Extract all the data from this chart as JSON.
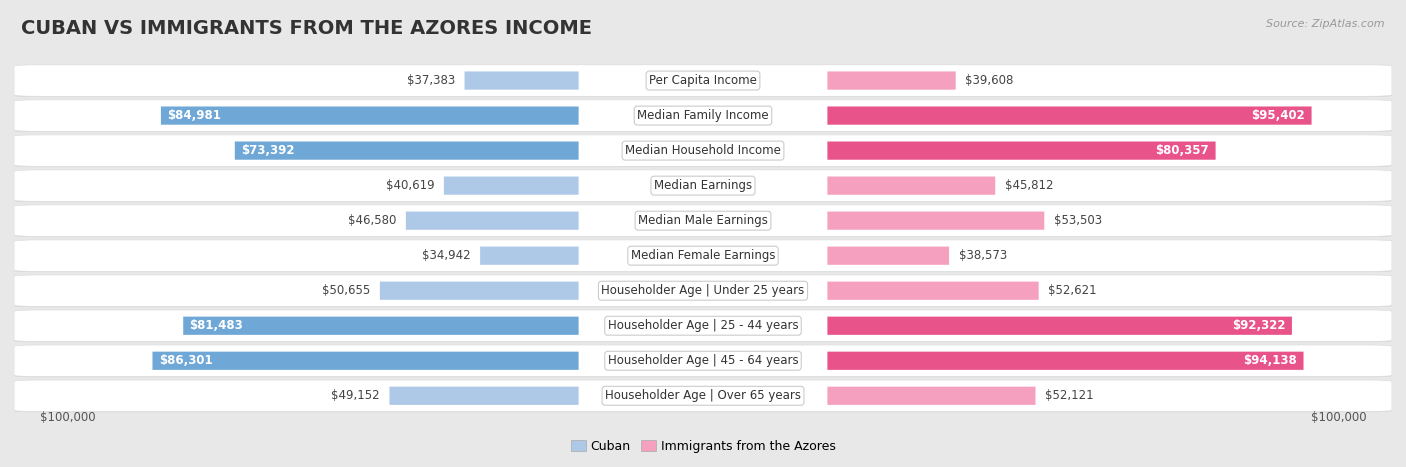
{
  "title": "CUBAN VS IMMIGRANTS FROM THE AZORES INCOME",
  "source": "Source: ZipAtlas.com",
  "categories": [
    "Per Capita Income",
    "Median Family Income",
    "Median Household Income",
    "Median Earnings",
    "Median Male Earnings",
    "Median Female Earnings",
    "Householder Age | Under 25 years",
    "Householder Age | 25 - 44 years",
    "Householder Age | 45 - 64 years",
    "Householder Age | Over 65 years"
  ],
  "cuban_values": [
    37383,
    84981,
    73392,
    40619,
    46580,
    34942,
    50655,
    81483,
    86301,
    49152
  ],
  "azores_values": [
    39608,
    95402,
    80357,
    45812,
    53503,
    38573,
    52621,
    92322,
    94138,
    52121
  ],
  "max_value": 100000,
  "cuban_color_strong": "#6fa8d6",
  "cuban_color_light": "#aec9e8",
  "azores_color_strong": "#e8538a",
  "azores_color_light": "#f4a0be",
  "cuban_threshold": 0.6,
  "azores_threshold": 0.6,
  "label_cuban": "Cuban",
  "label_azores": "Immigrants from the Azores",
  "x_label_left": "$100,000",
  "x_label_right": "$100,000",
  "bg_color": "#e8e8e8",
  "title_fontsize": 14,
  "label_fontsize": 8.5,
  "value_fontsize": 8.5,
  "bar_height": 0.52
}
